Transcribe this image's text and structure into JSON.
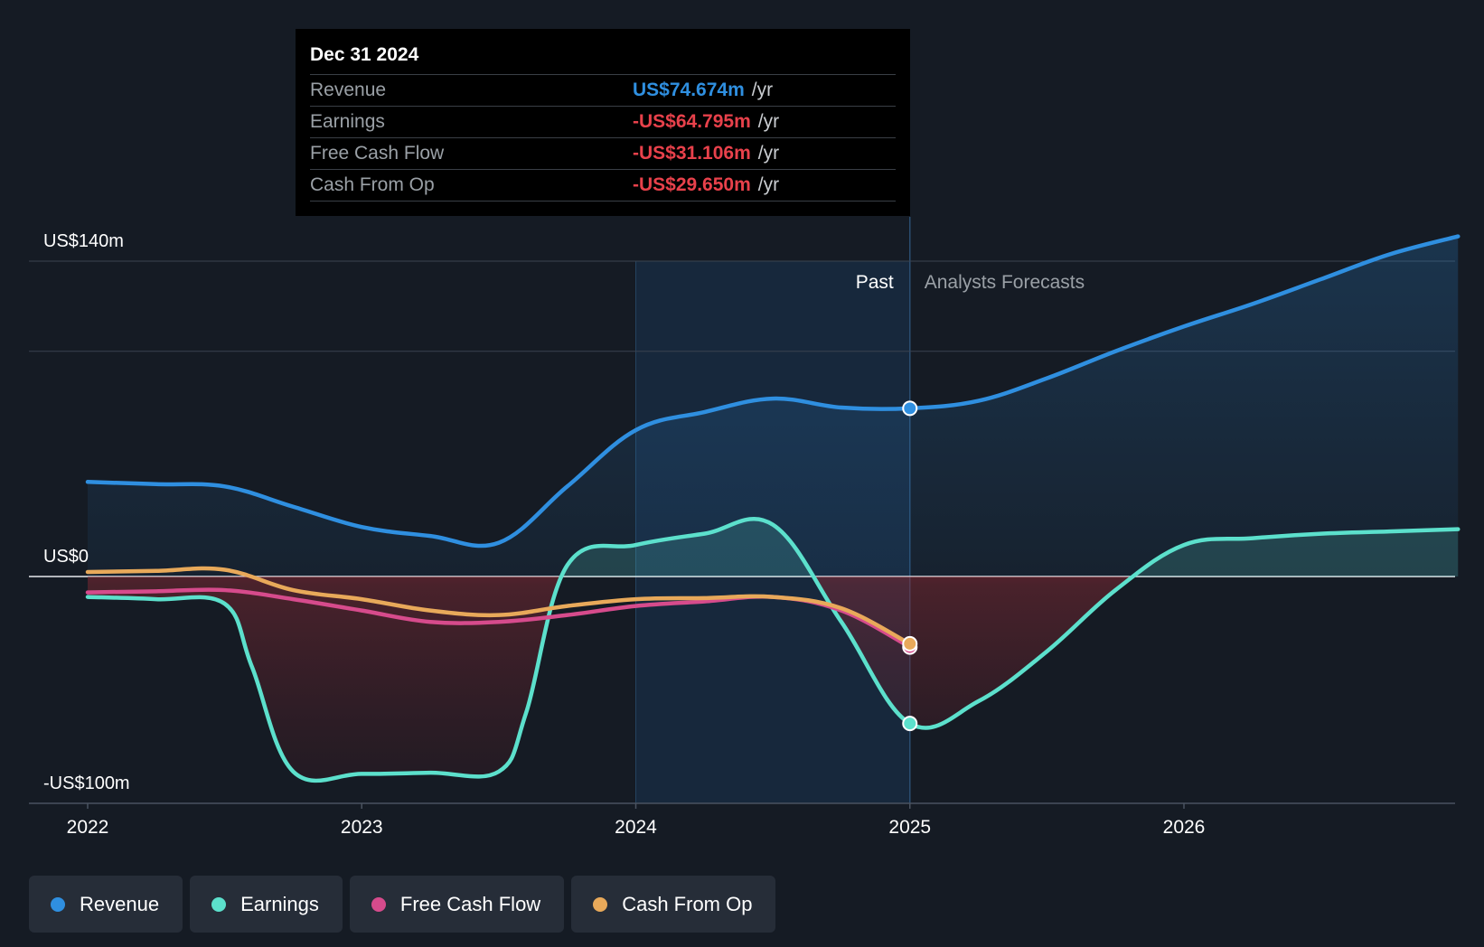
{
  "tooltip": {
    "date": "Dec 31 2024",
    "rows": [
      {
        "label": "Revenue",
        "value": "US$74.674m",
        "unit": "/yr",
        "color": "#2f8fe0"
      },
      {
        "label": "Earnings",
        "value": "-US$64.795m",
        "unit": "/yr",
        "color": "#e8414b"
      },
      {
        "label": "Free Cash Flow",
        "value": "-US$31.106m",
        "unit": "/yr",
        "color": "#e8414b"
      },
      {
        "label": "Cash From Op",
        "value": "-US$29.650m",
        "unit": "/yr",
        "color": "#e8414b"
      }
    ]
  },
  "legend": [
    {
      "label": "Revenue",
      "color": "#2f8fe0"
    },
    {
      "label": "Earnings",
      "color": "#5ce0cc"
    },
    {
      "label": "Free Cash Flow",
      "color": "#d64b8c"
    },
    {
      "label": "Cash From Op",
      "color": "#e8a95a"
    }
  ],
  "chart_data": {
    "type": "line",
    "title": "",
    "xlabel": "",
    "ylabel": "",
    "ylim": [
      -100,
      140
    ],
    "y_tick_labels": [
      {
        "value": 140,
        "label": "US$140m"
      },
      {
        "value": 0,
        "label": "US$0"
      },
      {
        "value": -100,
        "label": "-US$100m"
      }
    ],
    "x_ticks": [
      {
        "value": 2022,
        "label": "2022"
      },
      {
        "value": 2023,
        "label": "2023"
      },
      {
        "value": 2024,
        "label": "2024"
      },
      {
        "value": 2025,
        "label": "2025"
      },
      {
        "value": 2026,
        "label": "2026"
      }
    ],
    "xlim": [
      2021.78,
      2027.0
    ],
    "highlight_start": 2024.0,
    "divider_x": 2025.0,
    "past_label": "Past",
    "forecast_label": "Analysts Forecasts",
    "series": [
      {
        "name": "Revenue",
        "color": "#2f8fe0",
        "points": [
          [
            2022.0,
            42
          ],
          [
            2022.25,
            41
          ],
          [
            2022.5,
            40
          ],
          [
            2022.75,
            31
          ],
          [
            2023.0,
            22
          ],
          [
            2023.25,
            18
          ],
          [
            2023.5,
            15
          ],
          [
            2023.75,
            40
          ],
          [
            2024.0,
            65
          ],
          [
            2024.25,
            73
          ],
          [
            2024.5,
            79
          ],
          [
            2024.75,
            75
          ],
          [
            2025.0,
            74.674
          ],
          [
            2025.25,
            78
          ],
          [
            2025.5,
            88
          ],
          [
            2025.75,
            100
          ],
          [
            2026.0,
            111
          ],
          [
            2026.25,
            121
          ],
          [
            2026.5,
            132
          ],
          [
            2026.75,
            143
          ],
          [
            2027.0,
            151
          ]
        ],
        "marker_at": 2025.0
      },
      {
        "name": "Earnings",
        "color": "#5ce0cc",
        "points": [
          [
            2022.0,
            -9
          ],
          [
            2022.25,
            -10
          ],
          [
            2022.5,
            -12
          ],
          [
            2022.6,
            -40
          ],
          [
            2022.75,
            -86
          ],
          [
            2023.0,
            -87
          ],
          [
            2023.25,
            -86.5
          ],
          [
            2023.5,
            -86
          ],
          [
            2023.6,
            -60
          ],
          [
            2023.75,
            5
          ],
          [
            2024.0,
            14
          ],
          [
            2024.25,
            19
          ],
          [
            2024.5,
            23
          ],
          [
            2024.75,
            -20
          ],
          [
            2025.0,
            -64.795
          ],
          [
            2025.25,
            -55
          ],
          [
            2025.5,
            -33
          ],
          [
            2025.75,
            -6
          ],
          [
            2026.0,
            14
          ],
          [
            2026.25,
            17
          ],
          [
            2026.5,
            19
          ],
          [
            2026.75,
            20
          ],
          [
            2027.0,
            21
          ]
        ],
        "marker_at": 2025.0
      },
      {
        "name": "Free Cash Flow",
        "color": "#d64b8c",
        "points": [
          [
            2022.0,
            -7
          ],
          [
            2022.25,
            -6.5
          ],
          [
            2022.5,
            -6
          ],
          [
            2022.75,
            -10
          ],
          [
            2023.0,
            -15
          ],
          [
            2023.25,
            -20
          ],
          [
            2023.5,
            -20
          ],
          [
            2023.75,
            -17
          ],
          [
            2024.0,
            -13
          ],
          [
            2024.25,
            -11
          ],
          [
            2024.5,
            -9
          ],
          [
            2024.75,
            -15
          ],
          [
            2025.0,
            -31.106
          ]
        ],
        "marker_at": 2025.0
      },
      {
        "name": "Cash From Op",
        "color": "#e8a95a",
        "points": [
          [
            2022.0,
            2
          ],
          [
            2022.25,
            2.5
          ],
          [
            2022.5,
            3
          ],
          [
            2022.75,
            -6
          ],
          [
            2023.0,
            -10
          ],
          [
            2023.25,
            -15
          ],
          [
            2023.5,
            -17
          ],
          [
            2023.75,
            -13
          ],
          [
            2024.0,
            -10
          ],
          [
            2024.25,
            -9.5
          ],
          [
            2024.5,
            -9
          ],
          [
            2024.75,
            -14
          ],
          [
            2025.0,
            -29.65
          ]
        ],
        "marker_at": 2025.0
      }
    ]
  }
}
